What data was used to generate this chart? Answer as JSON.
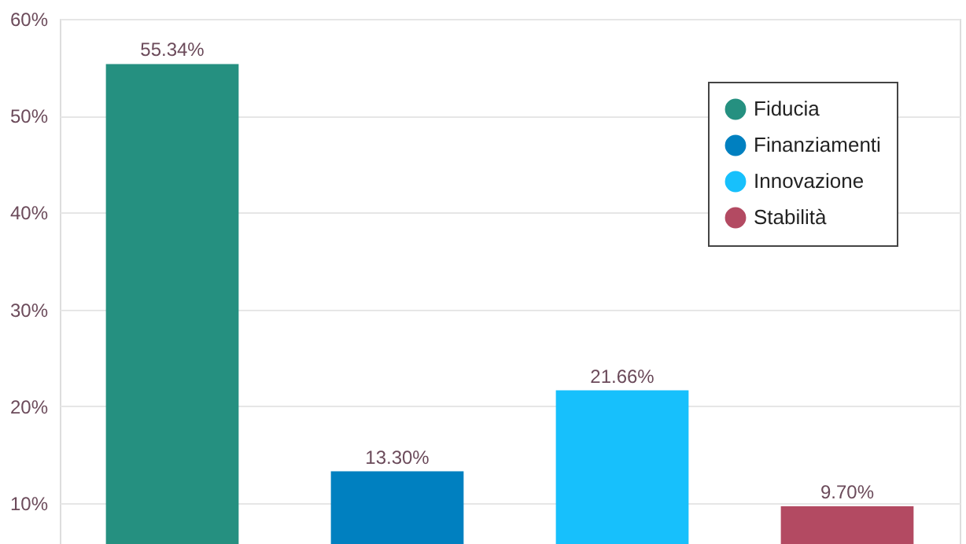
{
  "chart_data": {
    "type": "bar",
    "categories": [
      null,
      null,
      null,
      null
    ],
    "series": [
      {
        "name": "Fiducia",
        "color": "#259080",
        "values": [
          55.34,
          null,
          null,
          null
        ],
        "value_labels": [
          "55.34%",
          null,
          null,
          null
        ]
      },
      {
        "name": "Finanziamenti",
        "color": "#0080c0",
        "values": [
          null,
          13.3,
          null,
          null
        ],
        "value_labels": [
          null,
          "13.30%",
          null,
          null
        ]
      },
      {
        "name": "Innovazione",
        "color": "#17c0fc",
        "values": [
          null,
          null,
          21.66,
          null
        ],
        "value_labels": [
          null,
          null,
          "21.66%",
          null
        ]
      },
      {
        "name": "Stabilità",
        "color": "#b34a62",
        "values": [
          null,
          null,
          null,
          9.7
        ],
        "value_labels": [
          null,
          null,
          null,
          "9.70%"
        ]
      }
    ],
    "ylim": [
      5.8,
      60
    ],
    "yticks": [
      {
        "value": 10,
        "label": "10%"
      },
      {
        "value": 20,
        "label": "20%"
      },
      {
        "value": 30,
        "label": "30%"
      },
      {
        "value": 40,
        "label": "40%"
      },
      {
        "value": 50,
        "label": "50%"
      },
      {
        "value": 60,
        "label": "60%"
      }
    ],
    "grid": "y",
    "legend": "top right",
    "tick_labels": "y"
  }
}
